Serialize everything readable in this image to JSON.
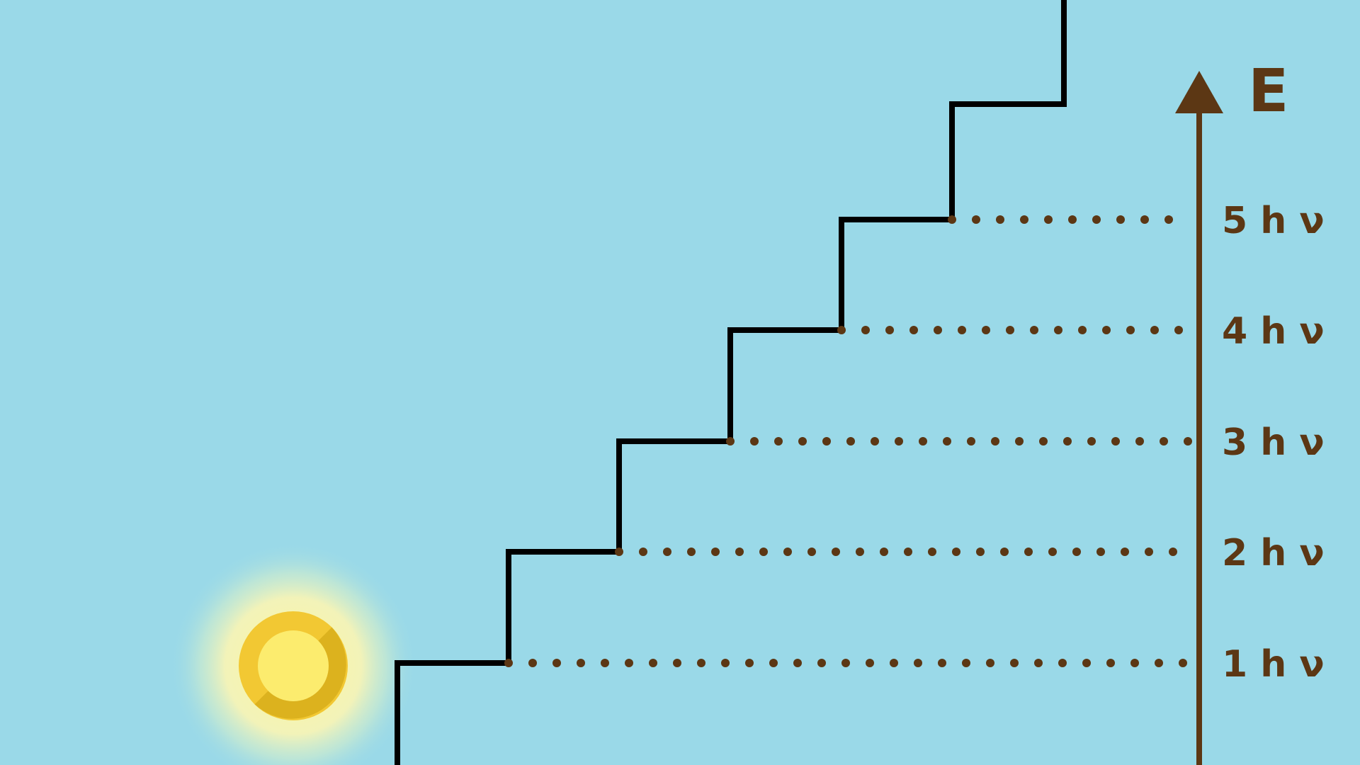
{
  "colors": {
    "background": "#9ad9e8",
    "staircase": "#000000",
    "axis": "#5c3714",
    "dots": "#5c3714",
    "ball_outer": "#f2c833",
    "ball_shade": "#dcb21e",
    "ball_inner": "#fcec6e",
    "glow": "#fdf7a0"
  },
  "axis": {
    "label": "E",
    "icon": "arrow-up-icon"
  },
  "levels": [
    {
      "n": 1,
      "label": "1 h ν"
    },
    {
      "n": 2,
      "label": "2 h ν"
    },
    {
      "n": 3,
      "label": "3 h ν"
    },
    {
      "n": 4,
      "label": "4 h ν"
    },
    {
      "n": 5,
      "label": "5 h ν"
    }
  ],
  "ball": {
    "icon": "glowing-ball-icon"
  }
}
